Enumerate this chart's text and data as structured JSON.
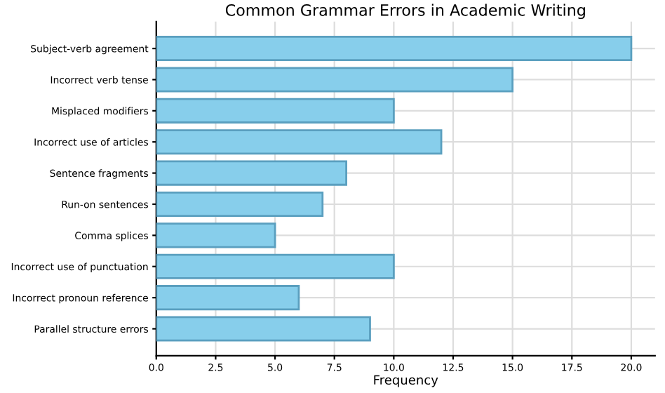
{
  "chart_data": {
    "type": "bar",
    "orientation": "horizontal",
    "title": "Common Grammar Errors in Academic Writing",
    "xlabel": "Frequency",
    "categories": [
      "Subject-verb agreement",
      "Incorrect verb tense",
      "Misplaced modifiers",
      "Incorrect use of articles",
      "Sentence fragments",
      "Run-on sentences",
      "Comma splices",
      "Incorrect use of punctuation",
      "Incorrect pronoun reference",
      "Parallel structure errors"
    ],
    "values": [
      20,
      15,
      10,
      12,
      8,
      7,
      5,
      10,
      6,
      9
    ],
    "color": "#87ceeb",
    "xlim": [
      0,
      21
    ],
    "xticks": [
      {
        "value": 0,
        "label": "0.0"
      },
      {
        "value": 2.5,
        "label": "2.5"
      },
      {
        "value": 5,
        "label": "5.0"
      },
      {
        "value": 7.5,
        "label": "7.5"
      },
      {
        "value": 10,
        "label": "10.0"
      },
      {
        "value": 12.5,
        "label": "12.5"
      },
      {
        "value": 15,
        "label": "15.0"
      },
      {
        "value": 17.5,
        "label": "17.5"
      },
      {
        "value": 20,
        "label": "20.0"
      }
    ],
    "grid": true
  }
}
